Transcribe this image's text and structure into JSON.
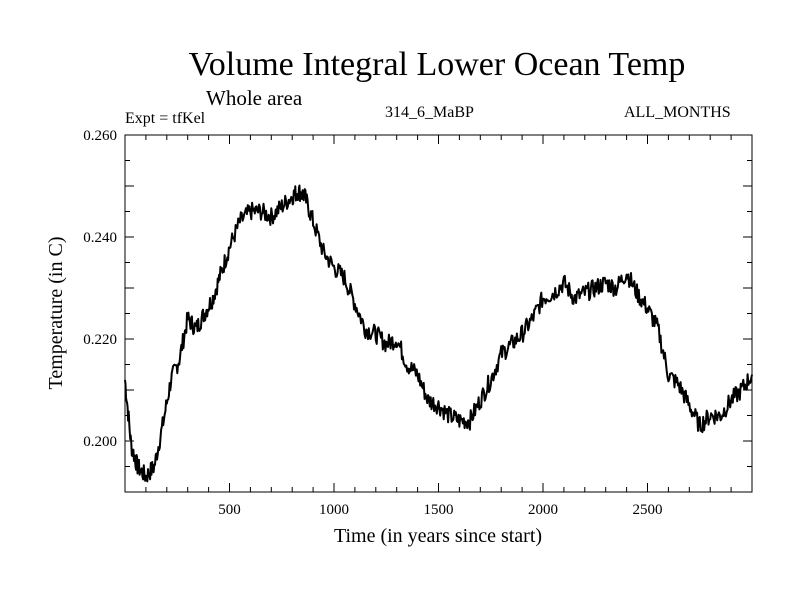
{
  "chart_data": {
    "type": "line",
    "title": "Volume Integral Lower Ocean Temp",
    "subtitle": "Whole area",
    "expt_label": "Expt = tfKel",
    "run_label": "314_6_MaBP",
    "months_label": "ALL_MONTHS",
    "xlabel": "Time (in years since start)",
    "ylabel": "Temperature (in C)",
    "xlim": [
      0,
      3000
    ],
    "ylim": [
      0.19,
      0.26
    ],
    "xticks": [
      500,
      1000,
      1500,
      2000,
      2500
    ],
    "xtick_labels": [
      "500",
      "1000",
      "1500",
      "2000",
      "2500"
    ],
    "yticks": [
      0.2,
      0.22,
      0.24,
      0.26
    ],
    "ytick_labels": [
      "0.200",
      "0.220",
      "0.240",
      "0.260"
    ],
    "grid": false,
    "series": [
      {
        "x": [
          0,
          30,
          60,
          100,
          140,
          180,
          220,
          260,
          300,
          340,
          380,
          420,
          460,
          500,
          550,
          600,
          650,
          700,
          750,
          800,
          830,
          860,
          900,
          950,
          1000,
          1050,
          1100,
          1150,
          1200,
          1250,
          1300,
          1350,
          1400,
          1450,
          1500,
          1550,
          1600,
          1650,
          1700,
          1750,
          1800,
          1850,
          1900,
          1950,
          2000,
          2050,
          2100,
          2150,
          2200,
          2250,
          2300,
          2350,
          2400,
          2450,
          2500,
          2550,
          2600,
          2650,
          2700,
          2750,
          2800,
          2850,
          2900,
          2950,
          3000
        ],
        "y": [
          0.212,
          0.199,
          0.195,
          0.193,
          0.195,
          0.203,
          0.212,
          0.216,
          0.224,
          0.222,
          0.225,
          0.228,
          0.233,
          0.238,
          0.243,
          0.245,
          0.245,
          0.244,
          0.246,
          0.248,
          0.249,
          0.248,
          0.243,
          0.237,
          0.234,
          0.232,
          0.227,
          0.222,
          0.221,
          0.219,
          0.22,
          0.215,
          0.213,
          0.208,
          0.207,
          0.205,
          0.204,
          0.204,
          0.208,
          0.212,
          0.217,
          0.219,
          0.221,
          0.224,
          0.228,
          0.229,
          0.231,
          0.228,
          0.229,
          0.23,
          0.231,
          0.23,
          0.233,
          0.229,
          0.226,
          0.222,
          0.213,
          0.211,
          0.207,
          0.203,
          0.205,
          0.205,
          0.208,
          0.21,
          0.213
        ]
      }
    ]
  }
}
